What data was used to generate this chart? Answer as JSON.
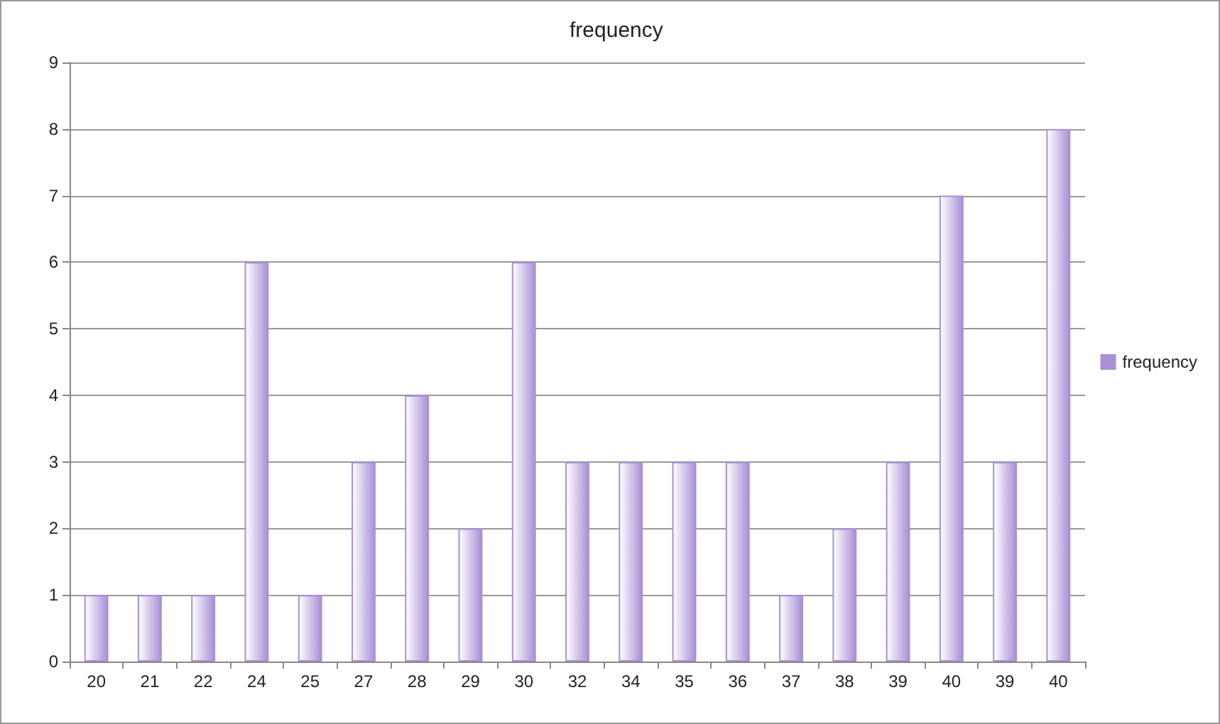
{
  "chart_data": {
    "type": "bar",
    "title": "frequency",
    "categories": [
      "20",
      "21",
      "22",
      "24",
      "25",
      "27",
      "28",
      "29",
      "30",
      "32",
      "34",
      "35",
      "36",
      "37",
      "38",
      "39",
      "40",
      "39",
      "40"
    ],
    "series": [
      {
        "name": "frequency",
        "color": "#a88fd6",
        "values": [
          1,
          1,
          1,
          6,
          1,
          3,
          4,
          2,
          6,
          3,
          3,
          3,
          3,
          1,
          2,
          3,
          7,
          3,
          8
        ]
      }
    ],
    "ylim": [
      0,
      9
    ],
    "yticks": [
      0,
      1,
      2,
      3,
      4,
      5,
      6,
      7,
      8,
      9
    ],
    "grid": "y",
    "legend": "right"
  }
}
